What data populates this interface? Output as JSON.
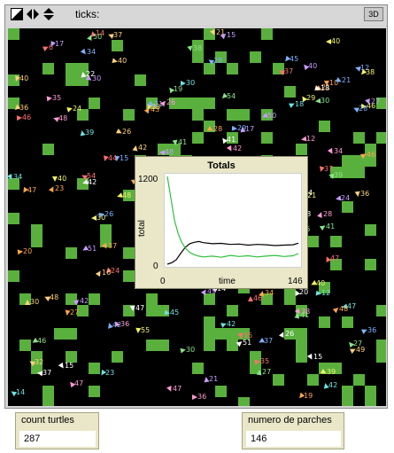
{
  "toolbar": {
    "ticks_label": "ticks:",
    "btn_3d": "3D",
    "icons": [
      "edit-icon",
      "speed-arrows-icon",
      "up-down-arrows-icon"
    ]
  },
  "world": {
    "background_color": "#000000",
    "patch_color": "#59b03d",
    "turtle_labels": [
      "6",
      "14",
      "34",
      "32",
      "21",
      "30",
      "36",
      "21",
      "33",
      "30",
      "37",
      "38",
      "10",
      "42",
      "21",
      "46",
      "48",
      "37",
      "34",
      "40",
      "37",
      "15",
      "36",
      "21",
      "24",
      "38",
      "47",
      "43",
      "45",
      "46",
      "47",
      "15",
      "26",
      "11",
      "46",
      "46",
      "42",
      "19",
      "42",
      "16",
      "35",
      "26",
      "37",
      "40",
      "15",
      "41",
      "24",
      "28",
      "10",
      "29",
      "20",
      "51",
      "12",
      "33",
      "49",
      "39",
      "19",
      "10",
      "12",
      "55",
      "24",
      "41",
      "28",
      "49",
      "30",
      "27",
      "28",
      "47",
      "34",
      "48",
      "14",
      "20",
      "21",
      "30",
      "27",
      "39",
      "38",
      "20",
      "23",
      "40",
      "46",
      "47",
      "21",
      "36",
      "40",
      "41",
      "36",
      "21",
      "39",
      "38",
      "18",
      "37",
      "42",
      "48",
      "48",
      "27",
      "34",
      "23",
      "14",
      "39",
      "30",
      "22",
      "36",
      "36",
      "17",
      "50",
      "56",
      "34",
      "18",
      "21",
      "46",
      "38",
      "29",
      "16",
      "17",
      "54",
      "26",
      "27",
      "47",
      "24",
      "54",
      "42",
      "28",
      "26",
      "51",
      "41",
      "35",
      "48",
      "42",
      "40",
      "55",
      "18",
      "15",
      "40",
      "42",
      "30",
      "47",
      "46",
      "30",
      "35",
      "44",
      "24",
      "45",
      "37",
      "50",
      "19",
      "12",
      "42"
    ]
  },
  "plot": {
    "title": "Totals",
    "y_axis_label": "total",
    "x_axis_label": "time",
    "y_max_label": "1200",
    "y_min_label": "0",
    "x_min_label": "0",
    "x_max_label": "146"
  },
  "chart_data": {
    "type": "line",
    "title": "Totals",
    "xlabel": "time",
    "ylabel": "total",
    "xlim": [
      0,
      146
    ],
    "ylim": [
      0,
      1200
    ],
    "series": [
      {
        "color": "#000000",
        "x": [
          0,
          5,
          10,
          15,
          20,
          25,
          30,
          35,
          40,
          50,
          60,
          70,
          80,
          90,
          100,
          110,
          120,
          130,
          140,
          146
        ],
        "values": [
          0,
          20,
          60,
          150,
          230,
          280,
          300,
          310,
          295,
          280,
          285,
          270,
          275,
          260,
          270,
          265,
          255,
          260,
          265,
          287
        ]
      },
      {
        "color": "#2fc13b",
        "x": [
          0,
          2,
          5,
          8,
          12,
          16,
          20,
          25,
          30,
          35,
          40,
          50,
          60,
          70,
          80,
          90,
          100,
          110,
          120,
          130,
          140,
          146
        ],
        "values": [
          1200,
          1050,
          820,
          600,
          420,
          300,
          220,
          160,
          130,
          110,
          100,
          110,
          95,
          120,
          105,
          115,
          100,
          110,
          120,
          105,
          115,
          146
        ]
      }
    ]
  },
  "monitors": [
    {
      "label": "count turtles",
      "value": "287"
    },
    {
      "label": "numero de parches",
      "value": "146"
    }
  ]
}
